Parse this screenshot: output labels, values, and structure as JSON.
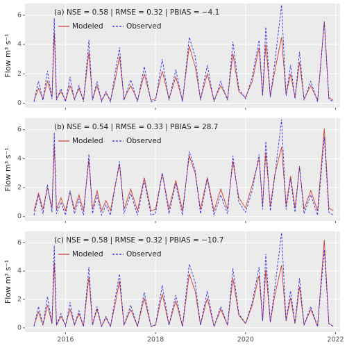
{
  "chart_data": [
    {
      "type": "line",
      "annotation": "(a)  NSE = 0.58 | RMSE = 0.32 | PBIAS = −4.1",
      "y_label": "Flow m³ s⁻¹",
      "x": [
        2015.3,
        2015.4,
        2015.5,
        2015.6,
        2015.7,
        2015.75,
        2015.8,
        2015.9,
        2016.0,
        2016.1,
        2016.2,
        2016.3,
        2016.4,
        2016.52,
        2016.6,
        2016.7,
        2016.8,
        2016.9,
        2017.0,
        2017.1,
        2017.2,
        2017.3,
        2017.45,
        2017.6,
        2017.75,
        2017.9,
        2018.0,
        2018.15,
        2018.3,
        2018.45,
        2018.6,
        2018.75,
        2018.88,
        2019.0,
        2019.15,
        2019.3,
        2019.45,
        2019.6,
        2019.72,
        2019.85,
        2020.0,
        2020.15,
        2020.3,
        2020.38,
        2020.45,
        2020.55,
        2020.65,
        2020.8,
        2020.9,
        2021.0,
        2021.1,
        2021.2,
        2021.3,
        2021.45,
        2021.6,
        2021.75,
        2021.85,
        2021.95
      ],
      "series": [
        {
          "name": "Modeled",
          "color": "#d03a2a",
          "dashed": false,
          "values": [
            0.2,
            1.0,
            0.3,
            1.5,
            0.4,
            4.8,
            0.3,
            0.8,
            0.2,
            1.2,
            0.3,
            1.0,
            0.2,
            3.5,
            0.3,
            1.2,
            0.2,
            0.7,
            0.2,
            1.5,
            3.2,
            0.3,
            1.2,
            0.2,
            2.0,
            0.2,
            0.3,
            2.2,
            0.3,
            1.8,
            0.2,
            3.9,
            2.5,
            0.3,
            2.0,
            0.2,
            1.2,
            0.3,
            3.4,
            0.8,
            0.4,
            1.5,
            3.8,
            0.6,
            4.0,
            0.5,
            2.2,
            4.5,
            0.6,
            2.0,
            0.4,
            2.8,
            0.3,
            1.2,
            0.2,
            5.6,
            0.4,
            0.2
          ]
        },
        {
          "name": "Observed",
          "color": "#2a2ae0",
          "dashed": true,
          "values": [
            0.1,
            1.5,
            0.2,
            2.2,
            0.3,
            5.8,
            0.2,
            1.0,
            0.1,
            1.8,
            0.2,
            1.2,
            0.1,
            4.3,
            0.2,
            1.5,
            0.1,
            0.8,
            0.1,
            2.0,
            3.8,
            0.2,
            1.6,
            0.1,
            2.5,
            0.1,
            0.2,
            3.0,
            0.2,
            2.3,
            0.1,
            4.5,
            3.2,
            0.2,
            2.6,
            0.1,
            1.5,
            0.2,
            4.2,
            1.0,
            0.3,
            1.8,
            4.3,
            0.5,
            5.2,
            0.4,
            2.8,
            6.7,
            0.5,
            2.6,
            0.3,
            3.5,
            0.2,
            1.5,
            0.1,
            5.5,
            0.3,
            0.1
          ]
        }
      ],
      "xlim": [
        2015.1,
        2022.1
      ],
      "xticks": [
        2016,
        2018,
        2020,
        2022
      ],
      "ylim": [
        -0.3,
        6.8
      ],
      "yticks": [
        0,
        2,
        4,
        6
      ],
      "grid": true
    },
    {
      "type": "line",
      "annotation": "(b)  NSE = 0.54 | RMSE = 0.33 | PBIAS = 28.7",
      "y_label": "Flow m³ s⁻¹",
      "x": [
        2015.3,
        2015.4,
        2015.5,
        2015.6,
        2015.7,
        2015.75,
        2015.8,
        2015.9,
        2016.0,
        2016.1,
        2016.2,
        2016.3,
        2016.4,
        2016.52,
        2016.6,
        2016.7,
        2016.8,
        2016.9,
        2017.0,
        2017.1,
        2017.2,
        2017.3,
        2017.45,
        2017.6,
        2017.75,
        2017.9,
        2018.0,
        2018.15,
        2018.3,
        2018.45,
        2018.6,
        2018.75,
        2018.88,
        2019.0,
        2019.15,
        2019.3,
        2019.45,
        2019.6,
        2019.72,
        2019.85,
        2020.0,
        2020.15,
        2020.3,
        2020.38,
        2020.45,
        2020.55,
        2020.65,
        2020.8,
        2020.9,
        2021.0,
        2021.1,
        2021.2,
        2021.3,
        2021.45,
        2021.6,
        2021.75,
        2021.85,
        2021.95
      ],
      "series": [
        {
          "name": "Modeled",
          "color": "#d03a2a",
          "dashed": false,
          "values": [
            0.4,
            1.6,
            0.5,
            2.0,
            0.6,
            4.9,
            0.5,
            1.3,
            0.4,
            1.7,
            0.5,
            1.5,
            0.4,
            3.9,
            0.5,
            1.8,
            0.4,
            1.1,
            0.4,
            2.1,
            3.6,
            0.5,
            1.9,
            0.4,
            2.7,
            0.4,
            0.5,
            3.0,
            0.5,
            2.5,
            0.4,
            4.2,
            3.0,
            0.5,
            2.7,
            0.4,
            1.9,
            0.5,
            3.8,
            1.3,
            0.6,
            2.2,
            4.0,
            0.8,
            4.4,
            0.7,
            2.9,
            4.8,
            0.8,
            2.8,
            0.6,
            3.4,
            0.5,
            1.8,
            0.4,
            6.1,
            0.6,
            0.4
          ]
        },
        {
          "name": "Observed",
          "color": "#2a2ae0",
          "dashed": true,
          "values": [
            0.1,
            1.5,
            0.2,
            2.2,
            0.3,
            5.8,
            0.2,
            1.0,
            0.1,
            1.8,
            0.2,
            1.2,
            0.1,
            4.3,
            0.2,
            1.5,
            0.1,
            0.8,
            0.1,
            2.0,
            3.8,
            0.2,
            1.6,
            0.1,
            2.5,
            0.1,
            0.2,
            3.0,
            0.2,
            2.3,
            0.1,
            4.5,
            3.2,
            0.2,
            2.6,
            0.1,
            1.5,
            0.2,
            4.2,
            1.0,
            0.3,
            1.8,
            4.3,
            0.5,
            5.2,
            0.4,
            2.8,
            6.7,
            0.5,
            2.6,
            0.3,
            3.5,
            0.2,
            1.5,
            0.1,
            5.5,
            0.3,
            0.1
          ]
        }
      ],
      "xlim": [
        2015.1,
        2022.1
      ],
      "xticks": [
        2016,
        2018,
        2020,
        2022
      ],
      "ylim": [
        -0.3,
        6.8
      ],
      "yticks": [
        0,
        2,
        4,
        6
      ],
      "grid": true
    },
    {
      "type": "line",
      "annotation": "(c)  NSE = 0.58 | RMSE = 0.32 | PBIAS = −10.7",
      "y_label": "Flow m³ s⁻¹",
      "x": [
        2015.3,
        2015.4,
        2015.5,
        2015.6,
        2015.7,
        2015.75,
        2015.8,
        2015.9,
        2016.0,
        2016.1,
        2016.2,
        2016.3,
        2016.4,
        2016.52,
        2016.6,
        2016.7,
        2016.8,
        2016.9,
        2017.0,
        2017.1,
        2017.2,
        2017.3,
        2017.45,
        2017.6,
        2017.75,
        2017.9,
        2018.0,
        2018.15,
        2018.3,
        2018.45,
        2018.6,
        2018.75,
        2018.88,
        2019.0,
        2019.15,
        2019.3,
        2019.45,
        2019.6,
        2019.72,
        2019.85,
        2020.0,
        2020.15,
        2020.3,
        2020.38,
        2020.45,
        2020.55,
        2020.65,
        2020.8,
        2020.9,
        2021.0,
        2021.1,
        2021.2,
        2021.3,
        2021.45,
        2021.6,
        2021.75,
        2021.85,
        2021.95
      ],
      "series": [
        {
          "name": "Modeled",
          "color": "#d03a2a",
          "dashed": false,
          "values": [
            0.2,
            1.1,
            0.2,
            1.6,
            0.3,
            4.6,
            0.2,
            0.8,
            0.2,
            1.3,
            0.2,
            1.0,
            0.1,
            3.6,
            0.2,
            1.3,
            0.1,
            0.7,
            0.1,
            1.6,
            3.3,
            0.2,
            1.3,
            0.1,
            2.1,
            0.1,
            0.2,
            2.4,
            0.2,
            1.9,
            0.1,
            3.8,
            2.6,
            0.2,
            2.1,
            0.1,
            1.3,
            0.2,
            3.5,
            0.9,
            0.3,
            1.6,
            3.7,
            0.5,
            4.1,
            0.4,
            2.3,
            4.4,
            0.5,
            2.1,
            0.3,
            2.9,
            0.2,
            1.3,
            0.1,
            6.2,
            0.3,
            0.1
          ]
        },
        {
          "name": "Observed",
          "color": "#2a2ae0",
          "dashed": true,
          "values": [
            0.1,
            1.5,
            0.2,
            2.2,
            0.3,
            5.8,
            0.2,
            1.0,
            0.1,
            1.8,
            0.2,
            1.2,
            0.1,
            4.3,
            0.2,
            1.5,
            0.1,
            0.8,
            0.1,
            2.0,
            3.8,
            0.2,
            1.6,
            0.1,
            2.5,
            0.1,
            0.2,
            3.0,
            0.2,
            2.3,
            0.1,
            4.5,
            3.2,
            0.2,
            2.6,
            0.1,
            1.5,
            0.2,
            4.2,
            1.0,
            0.3,
            1.8,
            4.3,
            0.5,
            5.2,
            0.4,
            2.8,
            6.7,
            0.5,
            2.6,
            0.3,
            3.5,
            0.2,
            1.5,
            0.1,
            5.5,
            0.3,
            0.1
          ]
        }
      ],
      "xlim": [
        2015.1,
        2022.1
      ],
      "xticks": [
        2016,
        2018,
        2020,
        2022
      ],
      "ylim": [
        -0.3,
        6.8
      ],
      "yticks": [
        0,
        2,
        4,
        6
      ],
      "grid": true
    }
  ]
}
